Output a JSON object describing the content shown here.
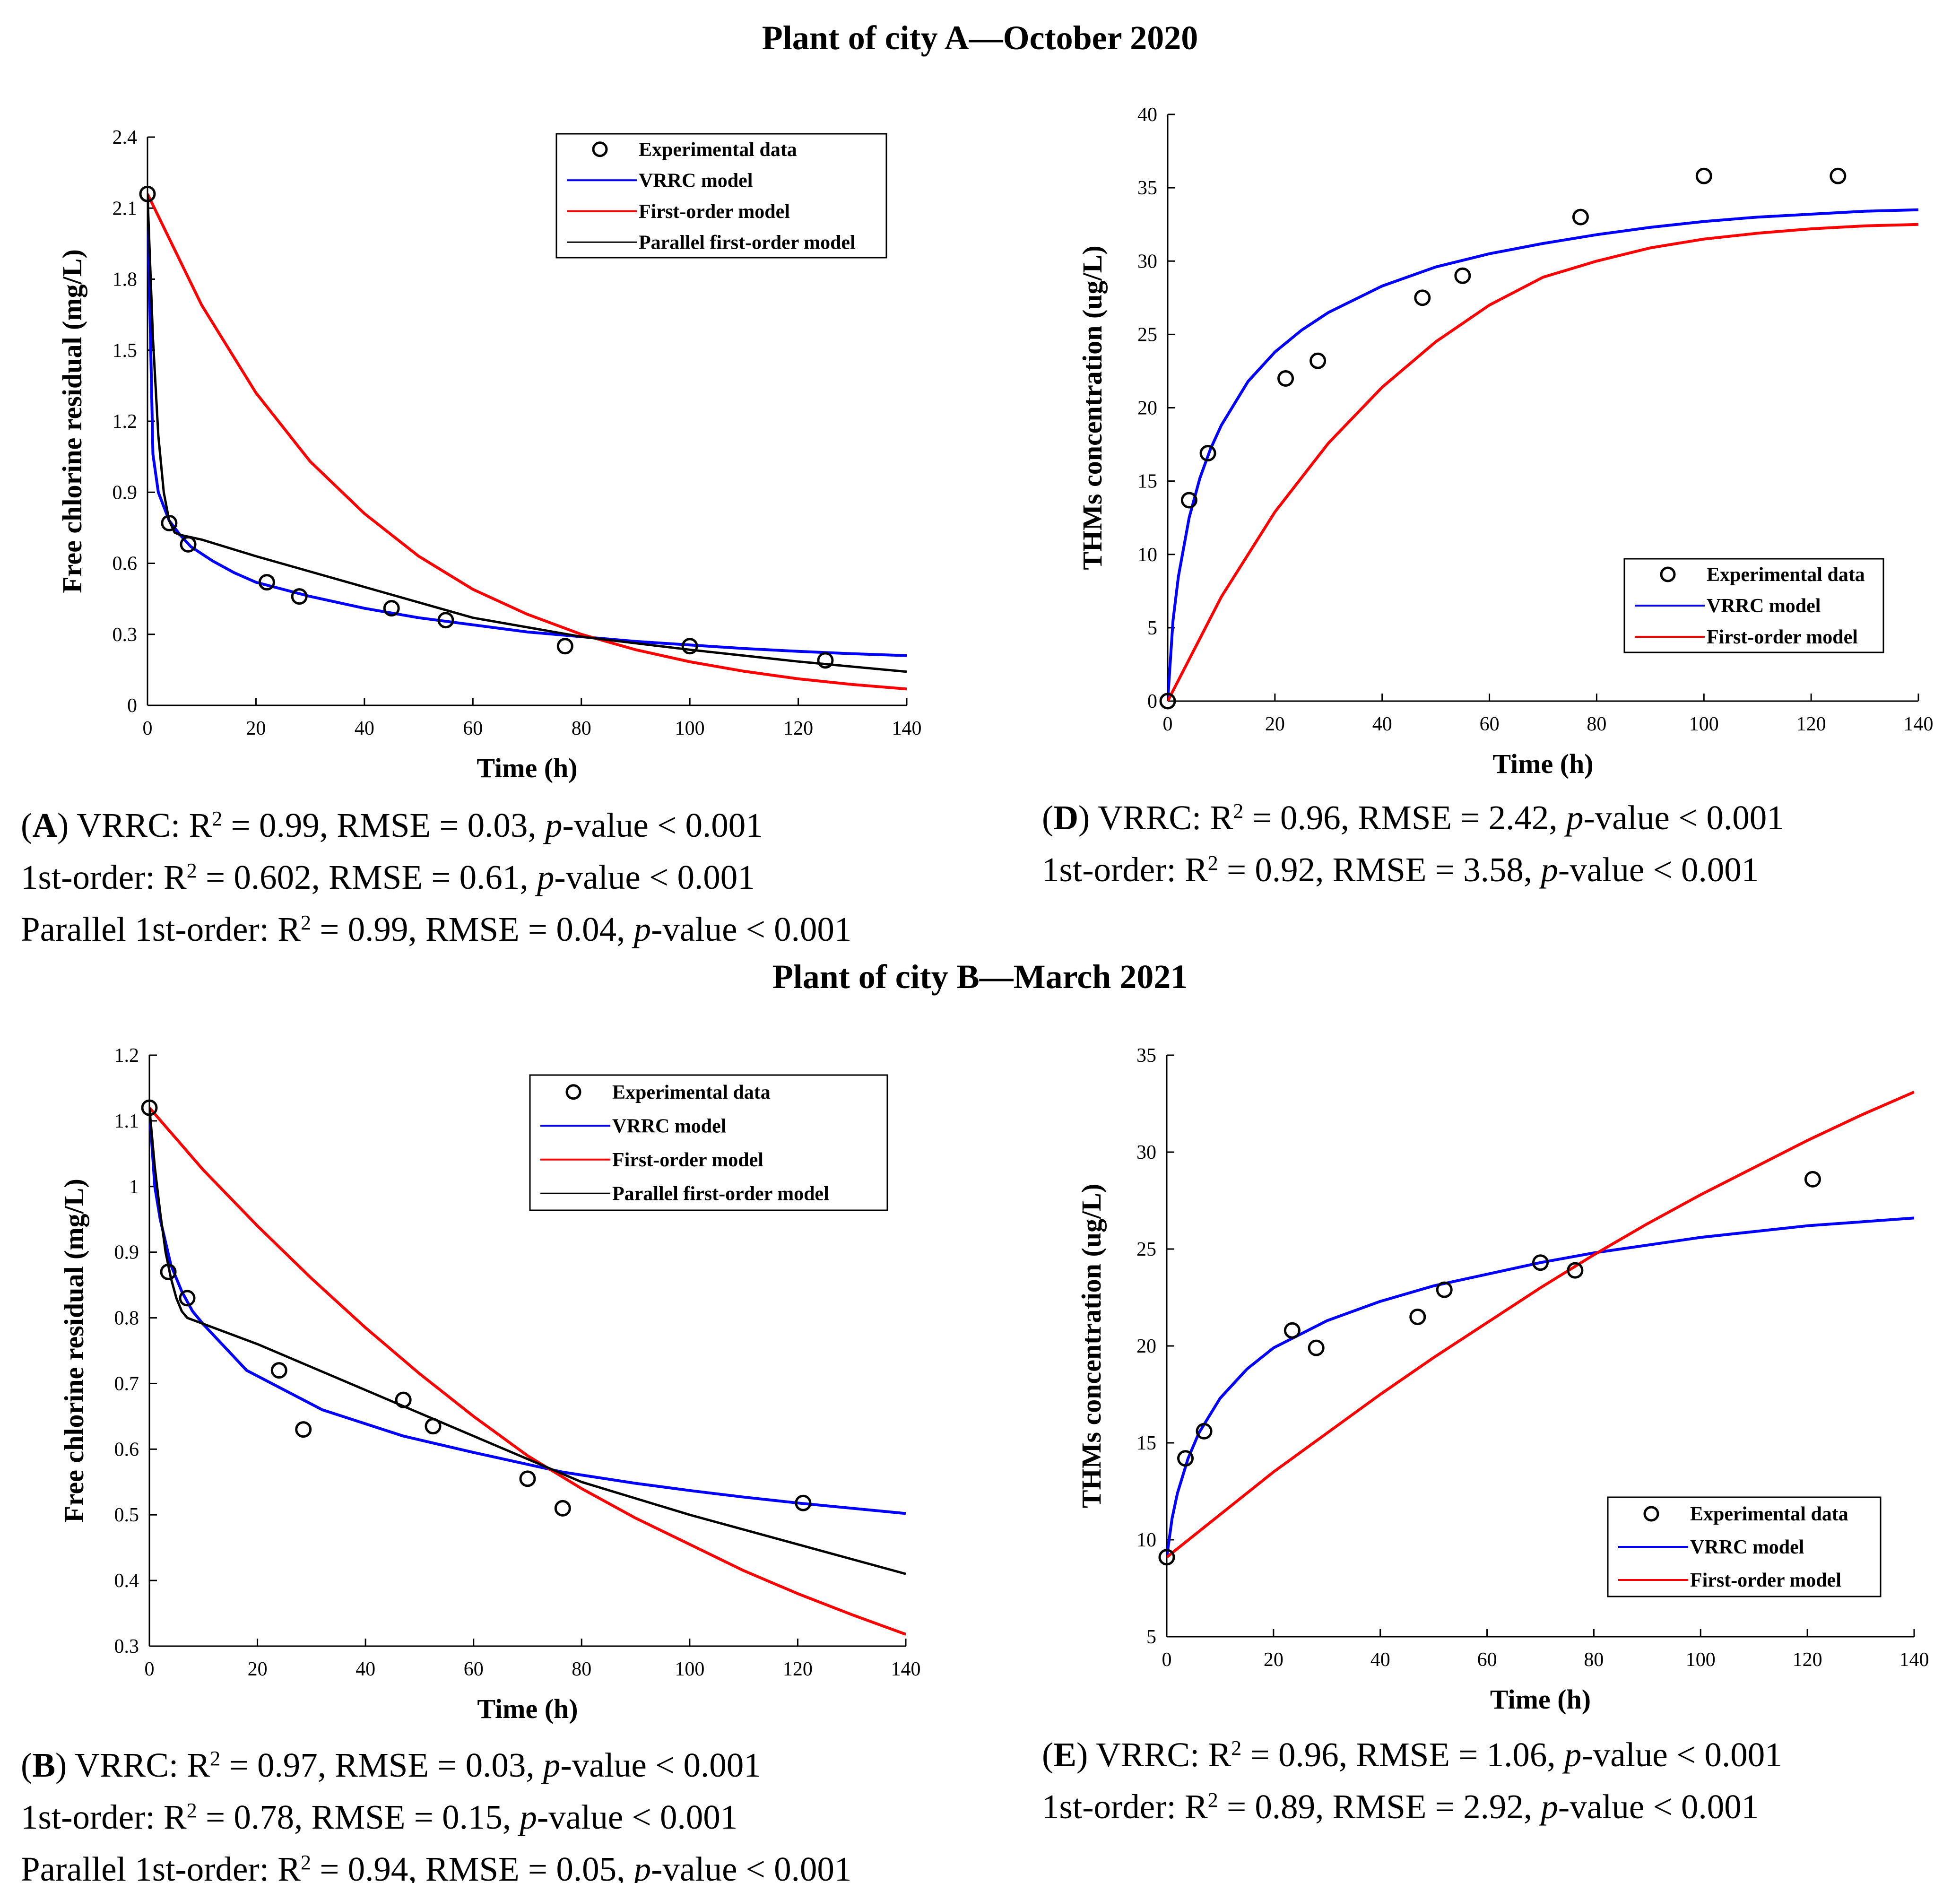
{
  "section_titles": {
    "top": "Plant of city A—October 2020",
    "bottom": "Plant of city B—March 2021"
  },
  "captions": {
    "A": [
      [
        {
          "t": "(",
          "i": false,
          "b": false
        },
        {
          "t": "A",
          "i": false,
          "b": true
        },
        {
          "t": ") VRRC: R",
          "i": false,
          "b": false
        },
        {
          "t": "2",
          "sup": true
        },
        {
          "t": " = 0.99, RMSE = 0.03, ",
          "i": false,
          "b": false
        },
        {
          "t": "p",
          "i": true,
          "b": false
        },
        {
          "t": "-value < 0.001",
          "i": false,
          "b": false
        }
      ],
      [
        {
          "t": "1st-order: R",
          "i": false,
          "b": false
        },
        {
          "t": "2",
          "sup": true
        },
        {
          "t": " = 0.602, RMSE = 0.61, ",
          "i": false,
          "b": false
        },
        {
          "t": "p",
          "i": true,
          "b": false
        },
        {
          "t": "-value < 0.001",
          "i": false,
          "b": false
        }
      ],
      [
        {
          "t": "Parallel 1st-order: R",
          "i": false,
          "b": false
        },
        {
          "t": "2",
          "sup": true
        },
        {
          "t": " = 0.99, RMSE = 0.04, ",
          "i": false,
          "b": false
        },
        {
          "t": "p",
          "i": true,
          "b": false
        },
        {
          "t": "-value < 0.001",
          "i": false,
          "b": false
        }
      ]
    ],
    "D": [
      [
        {
          "t": "(",
          "i": false,
          "b": false
        },
        {
          "t": "D",
          "i": false,
          "b": true
        },
        {
          "t": ") VRRC: R",
          "i": false,
          "b": false
        },
        {
          "t": "2",
          "sup": true
        },
        {
          "t": " = 0.96, RMSE = 2.42, ",
          "i": false,
          "b": false
        },
        {
          "t": "p",
          "i": true,
          "b": false
        },
        {
          "t": "-value < 0.001",
          "i": false,
          "b": false
        }
      ],
      [
        {
          "t": "1st-order: R",
          "i": false,
          "b": false
        },
        {
          "t": "2",
          "sup": true
        },
        {
          "t": " = 0.92, RMSE = 3.58, ",
          "i": false,
          "b": false
        },
        {
          "t": "p",
          "i": true,
          "b": false
        },
        {
          "t": "-value < 0.001",
          "i": false,
          "b": false
        }
      ]
    ],
    "B": [
      [
        {
          "t": "(",
          "i": false,
          "b": false
        },
        {
          "t": "B",
          "i": false,
          "b": true
        },
        {
          "t": ") VRRC: R",
          "i": false,
          "b": false
        },
        {
          "t": "2",
          "sup": true
        },
        {
          "t": " = 0.97, RMSE = 0.03, ",
          "i": false,
          "b": false
        },
        {
          "t": "p",
          "i": true,
          "b": false
        },
        {
          "t": "-value < 0.001",
          "i": false,
          "b": false
        }
      ],
      [
        {
          "t": "1st-order: R",
          "i": false,
          "b": false
        },
        {
          "t": "2",
          "sup": true
        },
        {
          "t": " = 0.78, RMSE = 0.15, ",
          "i": false,
          "b": false
        },
        {
          "t": "p",
          "i": true,
          "b": false
        },
        {
          "t": "-value < 0.001",
          "i": false,
          "b": false
        }
      ],
      [
        {
          "t": "Parallel 1st-order: R",
          "i": false,
          "b": false
        },
        {
          "t": "2",
          "sup": true
        },
        {
          "t": " = 0.94, RMSE = 0.05, ",
          "i": false,
          "b": false
        },
        {
          "t": "p",
          "i": true,
          "b": false
        },
        {
          "t": "-value < 0.001",
          "i": false,
          "b": false
        }
      ]
    ],
    "E": [
      [
        {
          "t": "(",
          "i": false,
          "b": false
        },
        {
          "t": "E",
          "i": false,
          "b": true
        },
        {
          "t": ") VRRC: R",
          "i": false,
          "b": false
        },
        {
          "t": "2",
          "sup": true
        },
        {
          "t": " = 0.96, RMSE = 1.06, ",
          "i": false,
          "b": false
        },
        {
          "t": "p",
          "i": true,
          "b": false
        },
        {
          "t": "-value < 0.001",
          "i": false,
          "b": false
        }
      ],
      [
        {
          "t": "1st-order: R",
          "i": false,
          "b": false
        },
        {
          "t": "2",
          "sup": true
        },
        {
          "t": " = 0.89, RMSE = 2.92, ",
          "i": false,
          "b": false
        },
        {
          "t": "p",
          "i": true,
          "b": false
        },
        {
          "t": "-value < 0.001",
          "i": false,
          "b": false
        }
      ]
    ]
  },
  "colors": {
    "experimental": "#000000",
    "vrrc": "#0000ff",
    "first_order": "#ff0000",
    "parallel": "#000000"
  },
  "chart_data": [
    {
      "id": "A",
      "type": "scatter",
      "title": "",
      "xlabel": "Time (h)",
      "ylabel": "Free chlorine residual (mg/L)",
      "xlim": [
        0,
        140
      ],
      "ylim": [
        0,
        2.4
      ],
      "xticks": [
        0,
        20,
        40,
        60,
        80,
        100,
        120,
        140
      ],
      "yticks": [
        0,
        0.3,
        0.6,
        0.9,
        1.2,
        1.5,
        1.8,
        2.1,
        2.4
      ],
      "ytick_labels": [
        "0",
        "0.3",
        "0.6",
        "0.9",
        "1.2",
        "1.5",
        "1.8",
        "2.1",
        "2.4"
      ],
      "legend_position": "top-right",
      "series": [
        {
          "name": "Experimental data",
          "kind": "points",
          "color": "#000000",
          "x": [
            0,
            4,
            7.5,
            22,
            28,
            45,
            55,
            77,
            100,
            125
          ],
          "y": [
            2.16,
            0.77,
            0.68,
            0.52,
            0.46,
            0.41,
            0.36,
            0.25,
            0.25,
            0.19
          ]
        },
        {
          "name": "VRRC model",
          "kind": "line",
          "color": "#0000ff",
          "x": [
            0,
            1,
            2,
            4,
            6,
            8,
            12,
            16,
            20,
            25,
            30,
            40,
            50,
            60,
            70,
            80,
            90,
            100,
            110,
            120,
            130,
            140
          ],
          "y": [
            2.16,
            1.06,
            0.9,
            0.78,
            0.72,
            0.67,
            0.61,
            0.56,
            0.52,
            0.49,
            0.46,
            0.41,
            0.37,
            0.34,
            0.31,
            0.29,
            0.27,
            0.255,
            0.24,
            0.228,
            0.218,
            0.21
          ]
        },
        {
          "name": "First-order model",
          "kind": "line",
          "color": "#ff0000",
          "x": [
            0,
            10,
            20,
            30,
            40,
            50,
            60,
            70,
            80,
            90,
            100,
            110,
            120,
            130,
            140
          ],
          "y": [
            2.16,
            1.69,
            1.32,
            1.03,
            0.81,
            0.63,
            0.49,
            0.385,
            0.3,
            0.235,
            0.184,
            0.144,
            0.112,
            0.088,
            0.069
          ]
        },
        {
          "name": "Parallel first-order model",
          "kind": "line",
          "color": "#000000",
          "x": [
            0,
            1,
            2,
            3,
            4,
            5,
            6,
            8,
            10,
            20,
            40,
            60,
            80,
            100,
            120,
            140
          ],
          "y": [
            2.16,
            1.55,
            1.14,
            0.9,
            0.78,
            0.73,
            0.72,
            0.71,
            0.7,
            0.63,
            0.5,
            0.37,
            0.29,
            0.235,
            0.185,
            0.142
          ]
        }
      ]
    },
    {
      "id": "D",
      "type": "scatter",
      "title": "",
      "xlabel": "Time (h)",
      "ylabel": "THMs concentration (ug/L)",
      "xlim": [
        0,
        140
      ],
      "ylim": [
        0,
        40
      ],
      "xticks": [
        0,
        20,
        40,
        60,
        80,
        100,
        120,
        140
      ],
      "yticks": [
        0,
        5,
        10,
        15,
        20,
        25,
        30,
        35,
        40
      ],
      "ytick_labels": [
        "0",
        "5",
        "10",
        "15",
        "20",
        "25",
        "30",
        "35",
        "40"
      ],
      "legend_position": "bottom-right",
      "series": [
        {
          "name": "Experimental data",
          "kind": "points",
          "color": "#000000",
          "x": [
            0,
            4,
            7.5,
            22,
            28,
            47.5,
            55,
            77,
            100,
            125
          ],
          "y": [
            0,
            13.7,
            16.9,
            22,
            23.2,
            27.5,
            29,
            33,
            35.8,
            35.8
          ]
        },
        {
          "name": "VRRC model",
          "kind": "line",
          "color": "#0000ff",
          "x": [
            0,
            1,
            2,
            4,
            6,
            8,
            10,
            15,
            20,
            25,
            30,
            40,
            50,
            60,
            70,
            80,
            90,
            100,
            110,
            120,
            130,
            140
          ],
          "y": [
            0,
            5.5,
            8.5,
            12.5,
            15.2,
            17.2,
            18.8,
            21.8,
            23.8,
            25.3,
            26.5,
            28.3,
            29.6,
            30.5,
            31.2,
            31.8,
            32.3,
            32.7,
            33,
            33.2,
            33.4,
            33.5
          ]
        },
        {
          "name": "First-order model",
          "kind": "line",
          "color": "#ff0000",
          "x": [
            0,
            10,
            20,
            30,
            40,
            50,
            60,
            70,
            80,
            90,
            100,
            110,
            120,
            130,
            140
          ],
          "y": [
            0,
            7.1,
            12.9,
            17.6,
            21.4,
            24.5,
            27,
            28.9,
            30,
            30.9,
            31.5,
            31.9,
            32.2,
            32.4,
            32.5
          ]
        }
      ]
    },
    {
      "id": "B",
      "type": "scatter",
      "title": "",
      "xlabel": "Time (h)",
      "ylabel": "Free chlorine residual (mg/L)",
      "xlim": [
        0,
        140
      ],
      "ylim": [
        0.3,
        1.2
      ],
      "xticks": [
        0,
        20,
        40,
        60,
        80,
        100,
        120,
        140
      ],
      "yticks": [
        0.3,
        0.4,
        0.5,
        0.6,
        0.7,
        0.8,
        0.9,
        1.0,
        1.1,
        1.2
      ],
      "ytick_labels": [
        "0.3",
        "0.4",
        "0.5",
        "0.6",
        "0.7",
        "0.8",
        "0.9",
        "1",
        "1.1",
        "1.2"
      ],
      "legend_position": "top-right",
      "series": [
        {
          "name": "Experimental data",
          "kind": "points",
          "color": "#000000",
          "x": [
            0,
            3.5,
            7,
            24,
            28.5,
            47,
            52.5,
            70,
            76.5,
            121
          ],
          "y": [
            1.12,
            0.87,
            0.83,
            0.72,
            0.63,
            0.675,
            0.635,
            0.555,
            0.51,
            0.518
          ]
        },
        {
          "name": "VRRC model",
          "kind": "line",
          "color": "#0000ff",
          "x": [
            0,
            1,
            2,
            4,
            6,
            8,
            10,
            18,
            32,
            47,
            60,
            76.5,
            90,
            100,
            110,
            120,
            130,
            140
          ],
          "y": [
            1.12,
            1.0,
            0.95,
            0.88,
            0.84,
            0.81,
            0.79,
            0.72,
            0.66,
            0.62,
            0.595,
            0.565,
            0.548,
            0.537,
            0.527,
            0.518,
            0.51,
            0.502
          ]
        },
        {
          "name": "First-order model",
          "kind": "line",
          "color": "#ff0000",
          "x": [
            0,
            10,
            20,
            30,
            40,
            50,
            60,
            70,
            80,
            90,
            100,
            110,
            120,
            130,
            140
          ],
          "y": [
            1.12,
            1.025,
            0.94,
            0.86,
            0.785,
            0.715,
            0.65,
            0.59,
            0.54,
            0.495,
            0.455,
            0.415,
            0.38,
            0.348,
            0.318
          ]
        },
        {
          "name": "Parallel first-order model",
          "kind": "line",
          "color": "#000000",
          "x": [
            0,
            1,
            2,
            3,
            4,
            5,
            6,
            7,
            20,
            40,
            60,
            80,
            100,
            120,
            140
          ],
          "y": [
            1.12,
            1.03,
            0.96,
            0.9,
            0.86,
            0.83,
            0.81,
            0.8,
            0.76,
            0.69,
            0.62,
            0.55,
            0.5,
            0.455,
            0.41
          ]
        }
      ]
    },
    {
      "id": "E",
      "type": "scatter",
      "title": "",
      "xlabel": "Time (h)",
      "ylabel": "THMs concentration (ug/L)",
      "xlim": [
        0,
        140
      ],
      "ylim": [
        5,
        35
      ],
      "xticks": [
        0,
        20,
        40,
        60,
        80,
        100,
        120,
        140
      ],
      "yticks": [
        5,
        10,
        15,
        20,
        25,
        30,
        35
      ],
      "ytick_labels": [
        "5",
        "10",
        "15",
        "20",
        "25",
        "30",
        "35"
      ],
      "legend_position": "bottom-right",
      "series": [
        {
          "name": "Experimental data",
          "kind": "points",
          "color": "#000000",
          "x": [
            0,
            3.5,
            7,
            23.5,
            28,
            47,
            52,
            70,
            76.5,
            121
          ],
          "y": [
            9.1,
            14.2,
            15.6,
            20.8,
            19.9,
            21.5,
            22.9,
            24.3,
            23.9,
            28.6
          ]
        },
        {
          "name": "VRRC model",
          "kind": "line",
          "color": "#0000ff",
          "x": [
            0,
            1,
            2,
            4,
            6,
            8,
            10,
            15,
            20,
            30,
            40,
            50,
            60,
            70,
            80,
            90,
            100,
            110,
            120,
            130,
            140
          ],
          "y": [
            9.1,
            11.1,
            12.4,
            14.2,
            15.5,
            16.4,
            17.3,
            18.8,
            19.9,
            21.3,
            22.3,
            23.1,
            23.7,
            24.3,
            24.8,
            25.2,
            25.6,
            25.9,
            26.2,
            26.4,
            26.6
          ]
        },
        {
          "name": "First-order model",
          "kind": "line",
          "color": "#ff0000",
          "x": [
            0,
            10,
            20,
            30,
            40,
            50,
            60,
            70,
            80,
            90,
            100,
            110,
            120,
            130,
            140
          ],
          "y": [
            9.1,
            11.3,
            13.5,
            15.5,
            17.5,
            19.4,
            21.2,
            23.0,
            24.7,
            26.3,
            27.8,
            29.2,
            30.6,
            31.9,
            33.1
          ]
        }
      ]
    }
  ]
}
